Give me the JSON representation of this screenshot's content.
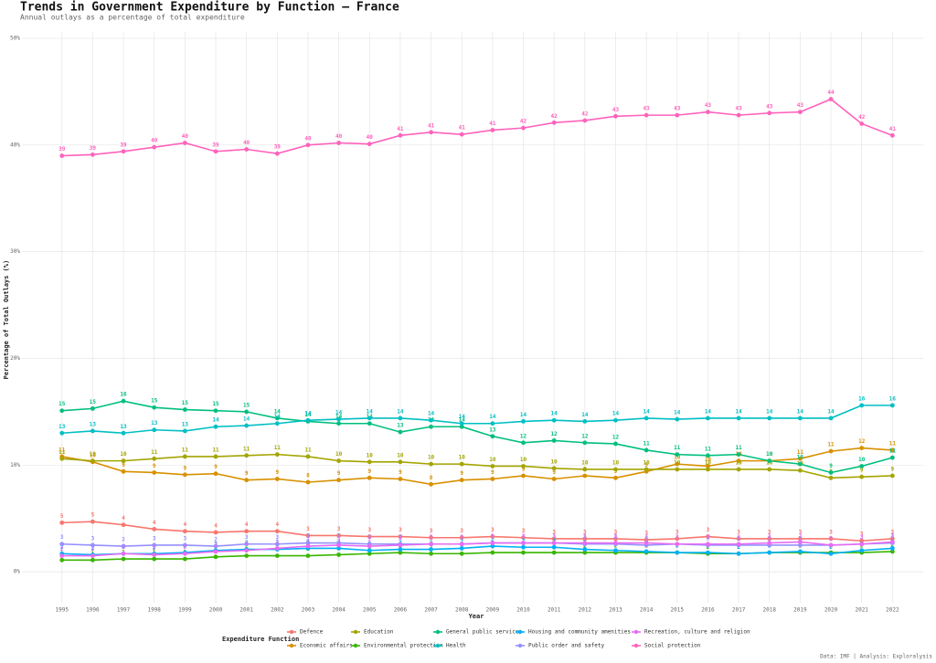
{
  "chart_data": {
    "type": "line",
    "title": "Trends in Government Expenditure by Function — France",
    "subtitle": "Annual outlays as a percentage of total expenditure",
    "x_label": "Year",
    "y_label": "Percentage of Total Outlays (%)",
    "legend_title": "Expenditure Function",
    "caption": "Data: IMF | Analysis: Exploralysis",
    "grid": true,
    "legend": "bottom",
    "x": [
      1995,
      1996,
      1997,
      1998,
      1999,
      2000,
      2001,
      2002,
      2003,
      2004,
      2005,
      2006,
      2007,
      2008,
      2009,
      2010,
      2011,
      2012,
      2013,
      2014,
      2015,
      2016,
      2017,
      2018,
      2019,
      2020,
      2021,
      2022
    ],
    "xticks": [
      1995,
      1996,
      1997,
      1998,
      1999,
      2000,
      2001,
      2002,
      2003,
      2004,
      2005,
      2006,
      2007,
      2008,
      2009,
      2010,
      2011,
      2012,
      2013,
      2014,
      2015,
      2016,
      2017,
      2018,
      2019,
      2020,
      2021,
      2022
    ],
    "xlim": [
      1993.7,
      2023.0
    ],
    "ylim": [
      -2.9,
      50.6
    ],
    "yticks": [
      {
        "value": 0,
        "label": "0%"
      },
      {
        "value": 10,
        "label": "10%"
      },
      {
        "value": 20,
        "label": "20%"
      },
      {
        "value": 30,
        "label": "30%"
      },
      {
        "value": 40,
        "label": "40%"
      },
      {
        "value": 50,
        "label": "50%"
      }
    ],
    "series": [
      {
        "name": "Defence",
        "color": "#F8766D",
        "values": [
          4.6,
          4.7,
          4.4,
          4.0,
          3.8,
          3.7,
          3.8,
          3.8,
          3.4,
          3.4,
          3.3,
          3.3,
          3.2,
          3.2,
          3.3,
          3.2,
          3.1,
          3.1,
          3.1,
          3.0,
          3.1,
          3.3,
          3.1,
          3.1,
          3.1,
          3.1,
          2.9,
          3.1
        ],
        "value_labels": [
          "5",
          "5",
          "4",
          "4",
          "4",
          "4",
          "4",
          "4",
          "3",
          "3",
          "3",
          "3",
          "3",
          "3",
          "3",
          "3",
          "3",
          "3",
          "3",
          "3",
          "3",
          "3",
          "3",
          "3",
          "3",
          "3",
          "3",
          "3"
        ]
      },
      {
        "name": "Economic affairs",
        "color": "#D89000",
        "values": [
          10.8,
          10.3,
          9.4,
          9.3,
          9.1,
          9.2,
          8.6,
          8.7,
          8.4,
          8.6,
          8.8,
          8.7,
          8.2,
          8.6,
          8.7,
          9.0,
          8.7,
          9.0,
          8.8,
          9.4,
          10.1,
          9.9,
          10.4,
          10.4,
          10.6,
          11.3,
          11.6,
          11.4
        ],
        "value_labels": [
          "11",
          "10",
          "9",
          "9",
          "9",
          "9",
          "9",
          "9",
          "8",
          "9",
          "9",
          "9",
          "8",
          "9",
          "9",
          "9",
          "9",
          "9",
          "9",
          "9",
          "10",
          "10",
          "10",
          "10",
          "11",
          "11",
          "12",
          "11"
        ]
      },
      {
        "name": "Education",
        "color": "#A3A500",
        "values": [
          10.6,
          10.4,
          10.4,
          10.6,
          10.8,
          10.8,
          10.9,
          11.0,
          10.8,
          10.4,
          10.3,
          10.3,
          10.1,
          10.1,
          9.9,
          9.9,
          9.7,
          9.6,
          9.6,
          9.6,
          9.6,
          9.6,
          9.6,
          9.6,
          9.5,
          8.8,
          8.9,
          9.0
        ],
        "value_labels": [
          "11",
          "10",
          "10",
          "11",
          "11",
          "11",
          "11",
          "11",
          "11",
          "10",
          "10",
          "10",
          "10",
          "10",
          "10",
          "10",
          "10",
          "10",
          "10",
          "10",
          "10",
          "10",
          "10",
          "10",
          "10",
          "9",
          "9",
          "9"
        ]
      },
      {
        "name": "Environmental protection",
        "color": "#39B600",
        "values": [
          1.1,
          1.1,
          1.2,
          1.2,
          1.2,
          1.4,
          1.5,
          1.5,
          1.5,
          1.6,
          1.7,
          1.8,
          1.7,
          1.7,
          1.8,
          1.8,
          1.8,
          1.8,
          1.8,
          1.8,
          1.8,
          1.7,
          1.7,
          1.8,
          1.8,
          1.8,
          1.8,
          1.9
        ],
        "value_labels": [
          "1",
          "1",
          "1",
          "1",
          "1",
          "1",
          "2",
          "2",
          "2",
          "2",
          "2",
          "2",
          "2",
          "2",
          "2",
          "2",
          "2",
          "2",
          "2",
          "2",
          "2",
          "2",
          "2",
          "2",
          "2",
          "2",
          "2",
          "2"
        ]
      },
      {
        "name": "General public services",
        "color": "#00BF7D",
        "values": [
          15.1,
          15.3,
          16.0,
          15.4,
          15.2,
          15.1,
          15.0,
          14.4,
          14.1,
          13.9,
          13.9,
          13.1,
          13.6,
          13.6,
          12.7,
          12.1,
          12.3,
          12.1,
          12.0,
          11.4,
          11.0,
          10.9,
          11.0,
          10.4,
          10.1,
          9.3,
          9.9,
          10.7
        ],
        "value_labels": [
          "15",
          "15",
          "16",
          "15",
          "15",
          "15",
          "15",
          "14",
          "14",
          "14",
          "14",
          "13",
          "14",
          "14",
          "13",
          "12",
          "12",
          "12",
          "12",
          "11",
          "11",
          "11",
          "11",
          "10",
          "10",
          "9",
          "10",
          "11"
        ]
      },
      {
        "name": "Health",
        "color": "#00BFC4",
        "values": [
          13.0,
          13.2,
          13.0,
          13.3,
          13.2,
          13.6,
          13.7,
          13.9,
          14.2,
          14.3,
          14.4,
          14.4,
          14.2,
          13.9,
          13.9,
          14.1,
          14.2,
          14.1,
          14.2,
          14.4,
          14.3,
          14.4,
          14.4,
          14.4,
          14.4,
          14.4,
          15.6,
          15.6
        ],
        "value_labels": [
          "13",
          "13",
          "13",
          "13",
          "13",
          "14",
          "14",
          "14",
          "14",
          "14",
          "14",
          "14",
          "14",
          "14",
          "14",
          "14",
          "14",
          "14",
          "14",
          "14",
          "14",
          "14",
          "14",
          "14",
          "14",
          "14",
          "16",
          "16"
        ]
      },
      {
        "name": "Housing and community amenities",
        "color": "#00B0F6",
        "values": [
          1.7,
          1.6,
          1.7,
          1.7,
          1.8,
          2.0,
          2.1,
          2.1,
          2.2,
          2.2,
          2.0,
          2.1,
          2.1,
          2.2,
          2.4,
          2.3,
          2.3,
          2.1,
          2.0,
          1.9,
          1.8,
          1.8,
          1.7,
          1.8,
          1.9,
          1.7,
          2.0,
          2.2
        ],
        "value_labels": [
          "2",
          "2",
          "2",
          "2",
          "2",
          "2",
          "2",
          "2",
          "2",
          "2",
          "2",
          "2",
          "2",
          "2",
          "2",
          "2",
          "2",
          "2",
          "2",
          "2",
          "2",
          "2",
          "2",
          "2",
          "2",
          "2",
          "2",
          "2"
        ]
      },
      {
        "name": "Public order and safety",
        "color": "#9590FF",
        "values": [
          2.6,
          2.5,
          2.4,
          2.5,
          2.5,
          2.4,
          2.6,
          2.6,
          2.7,
          2.7,
          2.6,
          2.6,
          2.6,
          2.6,
          2.7,
          2.7,
          2.7,
          2.6,
          2.6,
          2.5,
          2.6,
          2.5,
          2.5,
          2.5,
          2.5,
          2.5,
          2.6,
          2.7
        ],
        "value_labels": [
          "3",
          "3",
          "2",
          "3",
          "3",
          "2",
          "3",
          "3",
          "3",
          "3",
          "3",
          "3",
          "3",
          "3",
          "3",
          "3",
          "3",
          "3",
          "3",
          "3",
          "3",
          "3",
          "3",
          "3",
          "3",
          "3",
          "3",
          "3"
        ]
      },
      {
        "name": "Recreation, culture and religion",
        "color": "#E76BF3",
        "values": [
          1.5,
          1.5,
          1.7,
          1.6,
          1.7,
          1.9,
          2.0,
          2.2,
          2.4,
          2.5,
          2.4,
          2.5,
          2.6,
          2.6,
          2.7,
          2.7,
          2.7,
          2.7,
          2.7,
          2.7,
          2.6,
          2.6,
          2.6,
          2.7,
          2.8,
          2.5,
          2.6,
          2.8
        ],
        "value_labels": [
          "2",
          "2",
          "2",
          "2",
          "2",
          "2",
          "2",
          "2",
          "2",
          "3",
          "2",
          "3",
          "3",
          "3",
          "3",
          "3",
          "3",
          "3",
          "3",
          "3",
          "3",
          "3",
          "3",
          "3",
          "3",
          "3",
          "3",
          "3"
        ]
      },
      {
        "name": "Social protection",
        "color": "#FF62BC",
        "values": [
          39.0,
          39.1,
          39.4,
          39.8,
          40.2,
          39.4,
          39.6,
          39.2,
          40.0,
          40.2,
          40.1,
          40.9,
          41.2,
          41.0,
          41.4,
          41.6,
          42.1,
          42.3,
          42.7,
          42.8,
          42.8,
          43.1,
          42.8,
          43.0,
          43.1,
          44.3,
          42.0,
          40.9
        ],
        "value_labels": [
          "39",
          "39",
          "39",
          "40",
          "40",
          "39",
          "40",
          "39",
          "40",
          "40",
          "40",
          "41",
          "41",
          "41",
          "41",
          "42",
          "42",
          "42",
          "43",
          "43",
          "43",
          "43",
          "43",
          "43",
          "43",
          "44",
          "42",
          "41"
        ]
      }
    ]
  }
}
